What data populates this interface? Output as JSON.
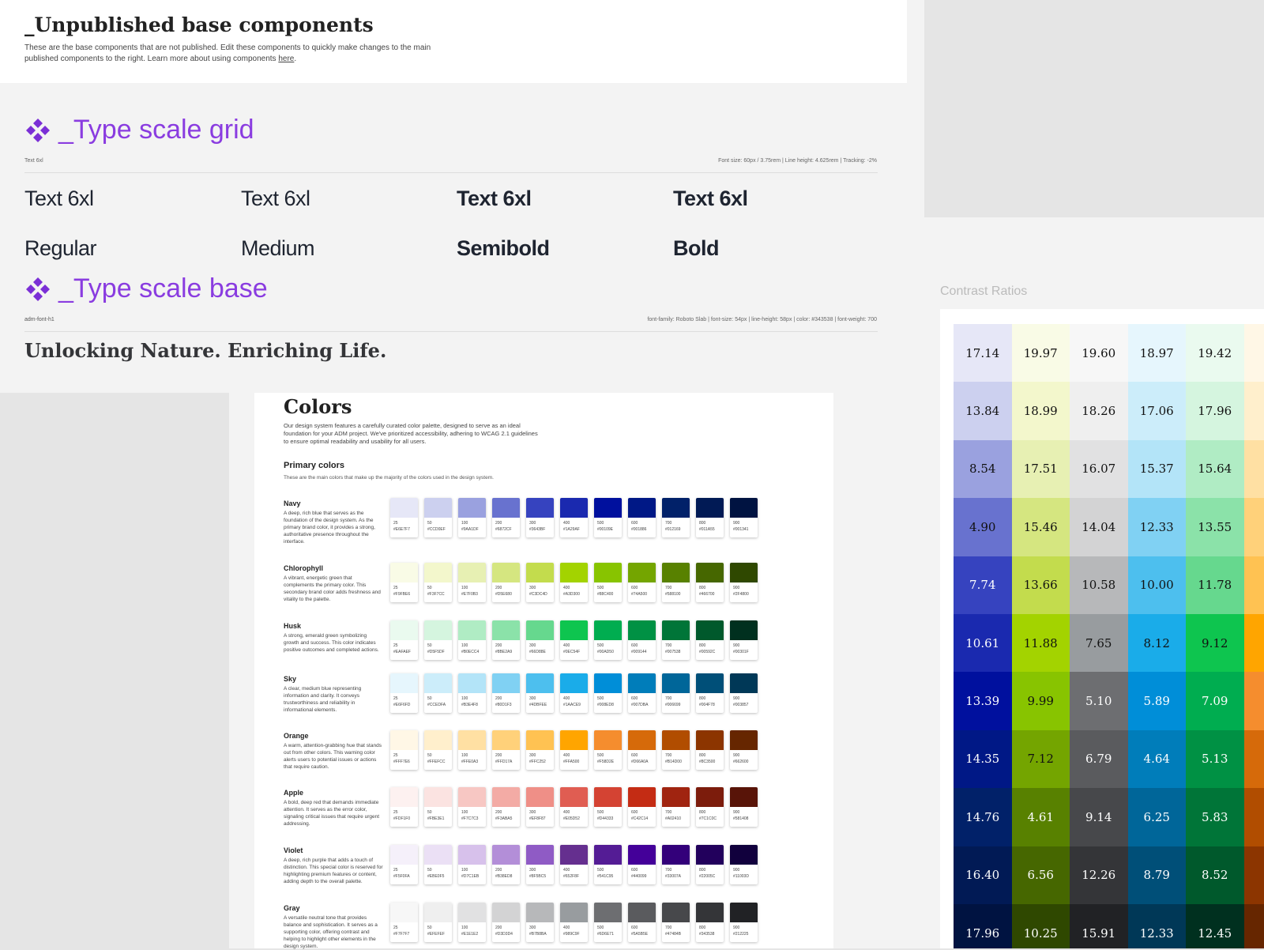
{
  "header": {
    "title": "_Unpublished base components",
    "description": "These are the base components that are not published. Edit these components to quickly make changes to the main published components to the right. Learn more about using components ",
    "link": "here",
    "description_end": "."
  },
  "type_scale_grid": {
    "title": "_Type scale grid",
    "label": "Text 6xl",
    "spec": "Font size: 60px / 3.75rem | Line height: 4.625rem | Tracking: -2%",
    "samples": [
      "Text 6xl",
      "Text 6xl",
      "Text 6xl",
      "Text 6xl"
    ],
    "weights": [
      "Regular",
      "Medium",
      "Semibold",
      "Bold"
    ]
  },
  "type_scale_base": {
    "title": "_Type scale base",
    "label": "adm-font-h1",
    "spec": "font-family: Roboto Slab | font-size: 54px | line-height: 58px | color: #343538 | font-weight: 700",
    "sample": "Unlocking Nature. Enriching Life."
  },
  "colors": {
    "title": "Colors",
    "intro": "Our design system features a carefully curated color palette, designed to serve as an ideal foundation for your ADM project. We've prioritized accessibility, adhering to WCAG 2.1 guidelines to ensure optimal readability and usability for all users.",
    "primary_title": "Primary colors",
    "primary_subtitle": "These are the main colors that make up the majority of the colors used in the design system.",
    "steps": [
      "25",
      "50",
      "100",
      "200",
      "300",
      "400",
      "500",
      "600",
      "700",
      "800",
      "900"
    ],
    "groups": [
      {
        "name": "Navy",
        "description": "A deep, rich blue that serves as the foundation of the design system. As the primary brand color, it provides a strong, authoritative presence throughout the interface.",
        "hexes": [
          "#E6E7F7",
          "#CCD0EF",
          "#9AA1DF",
          "#6872CF",
          "#3643BF",
          "#1A29AF",
          "#00109E",
          "#001886",
          "#012169",
          "#011A55",
          "#001341"
        ]
      },
      {
        "name": "Chlorophyll",
        "description": "A vibrant, energetic green that complements the primary color. This secondary brand color adds freshness and vitality to the palette.",
        "hexes": [
          "#F9FBE6",
          "#F3F7CC",
          "#E7F0B3",
          "#D5E680",
          "#C3DC4D",
          "#A3D300",
          "#88C400",
          "#74A500",
          "#588100",
          "#466700",
          "#2F4800"
        ]
      },
      {
        "name": "Husk",
        "description": "A strong, emerald green symbolizing growth and success. This color indicates positive outcomes and completed actions.",
        "hexes": [
          "#EAFAEF",
          "#D5F5DF",
          "#B0ECC4",
          "#8BE2A9",
          "#66D88E",
          "#0EC54F",
          "#00AD50",
          "#009144",
          "#007538",
          "#00592C",
          "#00301F"
        ]
      },
      {
        "name": "Sky",
        "description": "A clear, medium blue representing information and clarity. It conveys trustworthiness and reliability in informational elements.",
        "hexes": [
          "#E6F6FD",
          "#CCEDFA",
          "#B3E4F8",
          "#80D1F3",
          "#4DBFEE",
          "#1AACE9",
          "#008ED8",
          "#007DBA",
          "#006699",
          "#004F78",
          "#003857"
        ]
      },
      {
        "name": "Orange",
        "description": "A warm, attention-grabbing hue that stands out from other colors. This warning color alerts users to potential issues or actions that require caution.",
        "hexes": [
          "#FFF7E6",
          "#FFEFCC",
          "#FFE0A3",
          "#FFD17A",
          "#FFC252",
          "#FFA500",
          "#F58D2E",
          "#D66A0A",
          "#B14D00",
          "#8C3500",
          "#662600"
        ]
      },
      {
        "name": "Apple",
        "description": "A bold, deep red that demands immediate attention. It serves as the error color, signaling critical issues that require urgent addressing.",
        "hexes": [
          "#FDF1F0",
          "#FBE3E1",
          "#F7C7C3",
          "#F3ABA5",
          "#EF8F87",
          "#E05D52",
          "#D44333",
          "#C42C14",
          "#A02410",
          "#7C1C0C",
          "#581408"
        ]
      },
      {
        "name": "Violet",
        "description": "A deep, rich purple that adds a touch of distinction. This special color is reserved for highlighting premium features or content, adding depth to the overall palette.",
        "hexes": [
          "#F5F0FA",
          "#EBE0F5",
          "#D7C1EB",
          "#B38ED8",
          "#8F5BC5",
          "#652F8F",
          "#541C95",
          "#440099",
          "#33007A",
          "#22005C",
          "#11003D"
        ]
      },
      {
        "name": "Gray",
        "description": "A versatile neutral tone that provides balance and sophistication. It serves as a supporting color, offering contrast and helping to highlight other elements in the design system.",
        "hexes": [
          "#F7F7F7",
          "#EFEFEF",
          "#E1E1E2",
          "#D3D3D4",
          "#B7B8BA",
          "#989C9F",
          "#6D6E71",
          "#5A5B5E",
          "#47484B",
          "#343538",
          "#212225"
        ]
      }
    ]
  },
  "contrast": {
    "title": "Contrast Ratios",
    "rows": [
      [
        "17.14",
        "19.97",
        "19.60",
        "18.97",
        "19.42"
      ],
      [
        "13.84",
        "18.99",
        "18.26",
        "17.06",
        "17.96"
      ],
      [
        "8.54",
        "17.51",
        "16.07",
        "15.37",
        "15.64"
      ],
      [
        "4.90",
        "15.46",
        "14.04",
        "12.33",
        "13.55"
      ],
      [
        "7.74",
        "13.66",
        "10.58",
        "10.00",
        "11.78"
      ],
      [
        "10.61",
        "11.88",
        "7.65",
        "8.12",
        "9.12"
      ],
      [
        "13.39",
        "9.99",
        "5.10",
        "5.89",
        "7.09"
      ],
      [
        "14.35",
        "7.12",
        "6.79",
        "4.64",
        "5.13"
      ],
      [
        "14.76",
        "4.61",
        "9.14",
        "6.25",
        "5.83"
      ],
      [
        "16.40",
        "6.56",
        "12.26",
        "8.79",
        "8.52"
      ],
      [
        "17.96",
        "10.25",
        "15.91",
        "12.33",
        "12.45"
      ]
    ]
  }
}
